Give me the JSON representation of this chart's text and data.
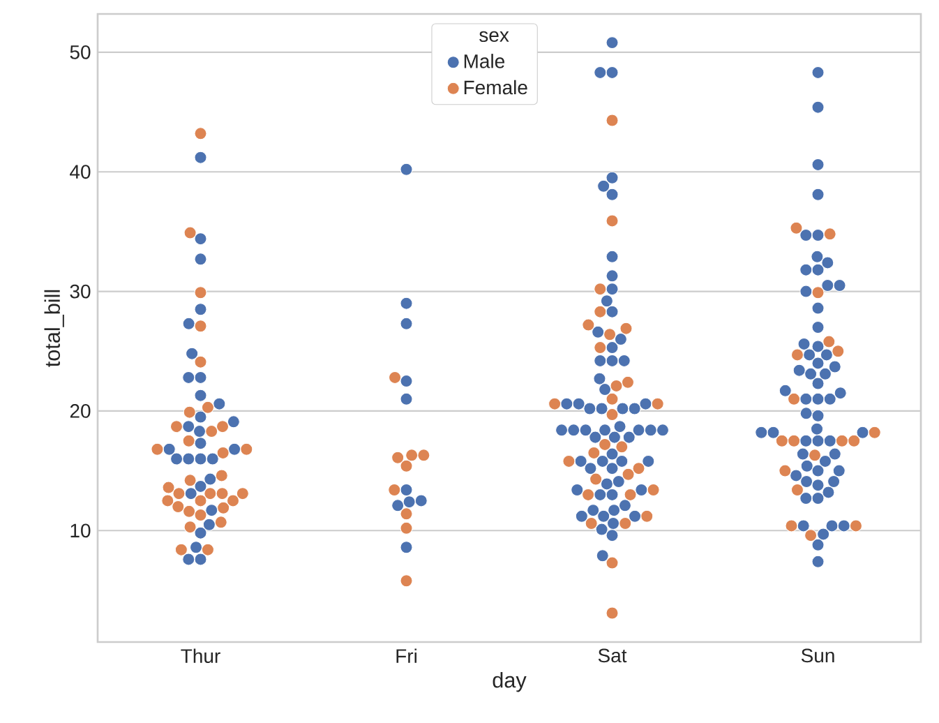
{
  "chart_data": {
    "type": "scatter",
    "xlabel": "day",
    "ylabel": "total_bill",
    "legend_title": "sex",
    "legend": "top center",
    "grid": "y",
    "marker": "circle",
    "categories": [
      "Thur",
      "Fri",
      "Sat",
      "Sun"
    ],
    "ylim": [
      0.68,
      53.2
    ],
    "yticks": [
      10,
      20,
      30,
      40,
      50
    ],
    "series": [
      {
        "name": "Male",
        "color": "#4c72b0",
        "x": [
          "Thur",
          "Thur",
          "Thur",
          "Thur",
          "Thur",
          "Thur",
          "Thur",
          "Thur",
          "Thur",
          "Thur",
          "Thur",
          "Thur",
          "Thur",
          "Thur",
          "Thur",
          "Thur",
          "Thur",
          "Thur",
          "Thur",
          "Thur",
          "Thur",
          "Thur",
          "Thur",
          "Thur",
          "Thur",
          "Thur",
          "Thur",
          "Thur",
          "Thur",
          "Thur",
          "Fri",
          "Fri",
          "Fri",
          "Fri",
          "Fri",
          "Fri",
          "Fri",
          "Fri",
          "Fri",
          "Fri",
          "Sat",
          "Sat",
          "Sat",
          "Sat",
          "Sat",
          "Sat",
          "Sat",
          "Sat",
          "Sat",
          "Sat",
          "Sat",
          "Sat",
          "Sat",
          "Sat",
          "Sat",
          "Sat",
          "Sat",
          "Sat",
          "Sat",
          "Sat",
          "Sat",
          "Sat",
          "Sat",
          "Sat",
          "Sat",
          "Sat",
          "Sat",
          "Sat",
          "Sat",
          "Sat",
          "Sat",
          "Sat",
          "Sat",
          "Sat",
          "Sat",
          "Sat",
          "Sat",
          "Sat",
          "Sat",
          "Sat",
          "Sat",
          "Sat",
          "Sat",
          "Sat",
          "Sat",
          "Sat",
          "Sat",
          "Sat",
          "Sat",
          "Sat",
          "Sat",
          "Sat",
          "Sat",
          "Sat",
          "Sat",
          "Sat",
          "Sat",
          "Sat",
          "Sat",
          "Sat",
          "Sun",
          "Sun",
          "Sun",
          "Sun",
          "Sun",
          "Sun",
          "Sun",
          "Sun",
          "Sun",
          "Sun",
          "Sun",
          "Sun",
          "Sun",
          "Sun",
          "Sun",
          "Sun",
          "Sun",
          "Sun",
          "Sun",
          "Sun",
          "Sun",
          "Sun",
          "Sun",
          "Sun",
          "Sun",
          "Sun",
          "Sun",
          "Sun",
          "Sun",
          "Sun",
          "Sun",
          "Sun",
          "Sun",
          "Sun",
          "Sun",
          "Sun",
          "Sun",
          "Sun",
          "Sun",
          "Sun",
          "Sun",
          "Sun",
          "Sun",
          "Sun",
          "Sun",
          "Sun",
          "Sun",
          "Sun",
          "Sun",
          "Sun",
          "Sun",
          "Sun",
          "Sun",
          "Sun",
          "Sun",
          "Sun",
          "Sun",
          "Sun"
        ],
        "values": [
          41.2,
          34.4,
          32.7,
          28.5,
          27.3,
          24.8,
          22.8,
          22.8,
          21.3,
          20.6,
          19.5,
          19.1,
          18.7,
          18.3,
          17.3,
          16.8,
          16.8,
          16.0,
          16.0,
          16.0,
          16.0,
          14.3,
          13.7,
          13.1,
          11.7,
          10.5,
          9.8,
          8.6,
          7.6,
          7.6,
          40.2,
          29.0,
          27.3,
          22.5,
          21.0,
          13.4,
          12.5,
          12.4,
          12.1,
          8.6,
          50.8,
          48.3,
          48.3,
          39.5,
          38.8,
          38.1,
          32.9,
          31.3,
          30.2,
          29.2,
          28.3,
          26.6,
          26.0,
          25.3,
          24.2,
          24.2,
          24.2,
          22.7,
          21.8,
          20.6,
          20.6,
          20.6,
          20.2,
          20.2,
          20.2,
          20.2,
          18.7,
          18.4,
          18.4,
          18.4,
          18.4,
          18.4,
          18.4,
          18.4,
          17.8,
          17.8,
          17.8,
          16.4,
          15.8,
          15.8,
          15.8,
          15.8,
          15.2,
          15.2,
          14.1,
          13.9,
          13.4,
          13.4,
          13.0,
          13.0,
          12.1,
          11.7,
          11.7,
          11.2,
          11.2,
          11.2,
          10.6,
          10.1,
          9.6,
          7.9,
          48.3,
          45.4,
          40.6,
          38.1,
          34.7,
          34.7,
          32.9,
          32.4,
          31.8,
          31.8,
          30.5,
          30.5,
          30.0,
          28.6,
          27.0,
          25.6,
          25.4,
          24.7,
          24.7,
          24.0,
          23.7,
          23.4,
          23.1,
          23.1,
          22.3,
          21.7,
          21.5,
          21.0,
          21.0,
          21.0,
          19.8,
          19.6,
          18.5,
          18.2,
          18.2,
          18.2,
          17.5,
          17.5,
          17.5,
          16.4,
          16.4,
          15.8,
          15.4,
          15.0,
          15.0,
          14.6,
          14.1,
          14.1,
          13.8,
          13.2,
          12.7,
          12.7,
          10.4,
          10.4,
          10.4,
          9.7,
          8.8,
          7.4
        ]
      },
      {
        "name": "Female",
        "color": "#dd8452",
        "x": [
          "Thur",
          "Thur",
          "Thur",
          "Thur",
          "Thur",
          "Thur",
          "Thur",
          "Thur",
          "Thur",
          "Thur",
          "Thur",
          "Thur",
          "Thur",
          "Thur",
          "Thur",
          "Thur",
          "Thur",
          "Thur",
          "Thur",
          "Thur",
          "Thur",
          "Thur",
          "Thur",
          "Thur",
          "Thur",
          "Thur",
          "Thur",
          "Thur",
          "Thur",
          "Thur",
          "Thur",
          "Thur",
          "Fri",
          "Fri",
          "Fri",
          "Fri",
          "Fri",
          "Fri",
          "Fri",
          "Fri",
          "Fri",
          "Sat",
          "Sat",
          "Sat",
          "Sat",
          "Sat",
          "Sat",
          "Sat",
          "Sat",
          "Sat",
          "Sat",
          "Sat",
          "Sat",
          "Sat",
          "Sat",
          "Sat",
          "Sat",
          "Sat",
          "Sat",
          "Sat",
          "Sat",
          "Sat",
          "Sat",
          "Sat",
          "Sat",
          "Sat",
          "Sat",
          "Sat",
          "Sat",
          "Sat",
          "Sun",
          "Sun",
          "Sun",
          "Sun",
          "Sun",
          "Sun",
          "Sun",
          "Sun",
          "Sun",
          "Sun",
          "Sun",
          "Sun",
          "Sun",
          "Sun",
          "Sun",
          "Sun",
          "Sun",
          "Sun"
        ],
        "values": [
          43.2,
          34.9,
          29.9,
          27.1,
          24.1,
          20.3,
          19.9,
          18.7,
          18.7,
          18.3,
          17.5,
          16.8,
          16.8,
          16.5,
          14.6,
          14.2,
          13.6,
          13.1,
          13.1,
          13.1,
          13.1,
          12.5,
          12.5,
          12.5,
          12.0,
          11.9,
          11.6,
          11.3,
          10.7,
          10.3,
          8.4,
          8.4,
          22.8,
          16.3,
          16.3,
          16.1,
          15.4,
          13.4,
          11.4,
          10.2,
          5.8,
          44.3,
          35.9,
          30.2,
          28.3,
          27.2,
          26.9,
          26.4,
          25.3,
          22.4,
          22.1,
          21.0,
          20.6,
          20.6,
          19.7,
          17.2,
          17.0,
          16.5,
          15.8,
          15.2,
          14.7,
          14.3,
          13.4,
          13.0,
          13.0,
          11.2,
          10.6,
          10.6,
          7.3,
          3.1,
          35.3,
          34.8,
          29.9,
          25.8,
          25.0,
          24.7,
          21.0,
          18.2,
          17.5,
          17.5,
          17.5,
          17.5,
          16.3,
          15.0,
          13.4,
          10.4,
          10.4,
          9.6
        ]
      }
    ]
  }
}
